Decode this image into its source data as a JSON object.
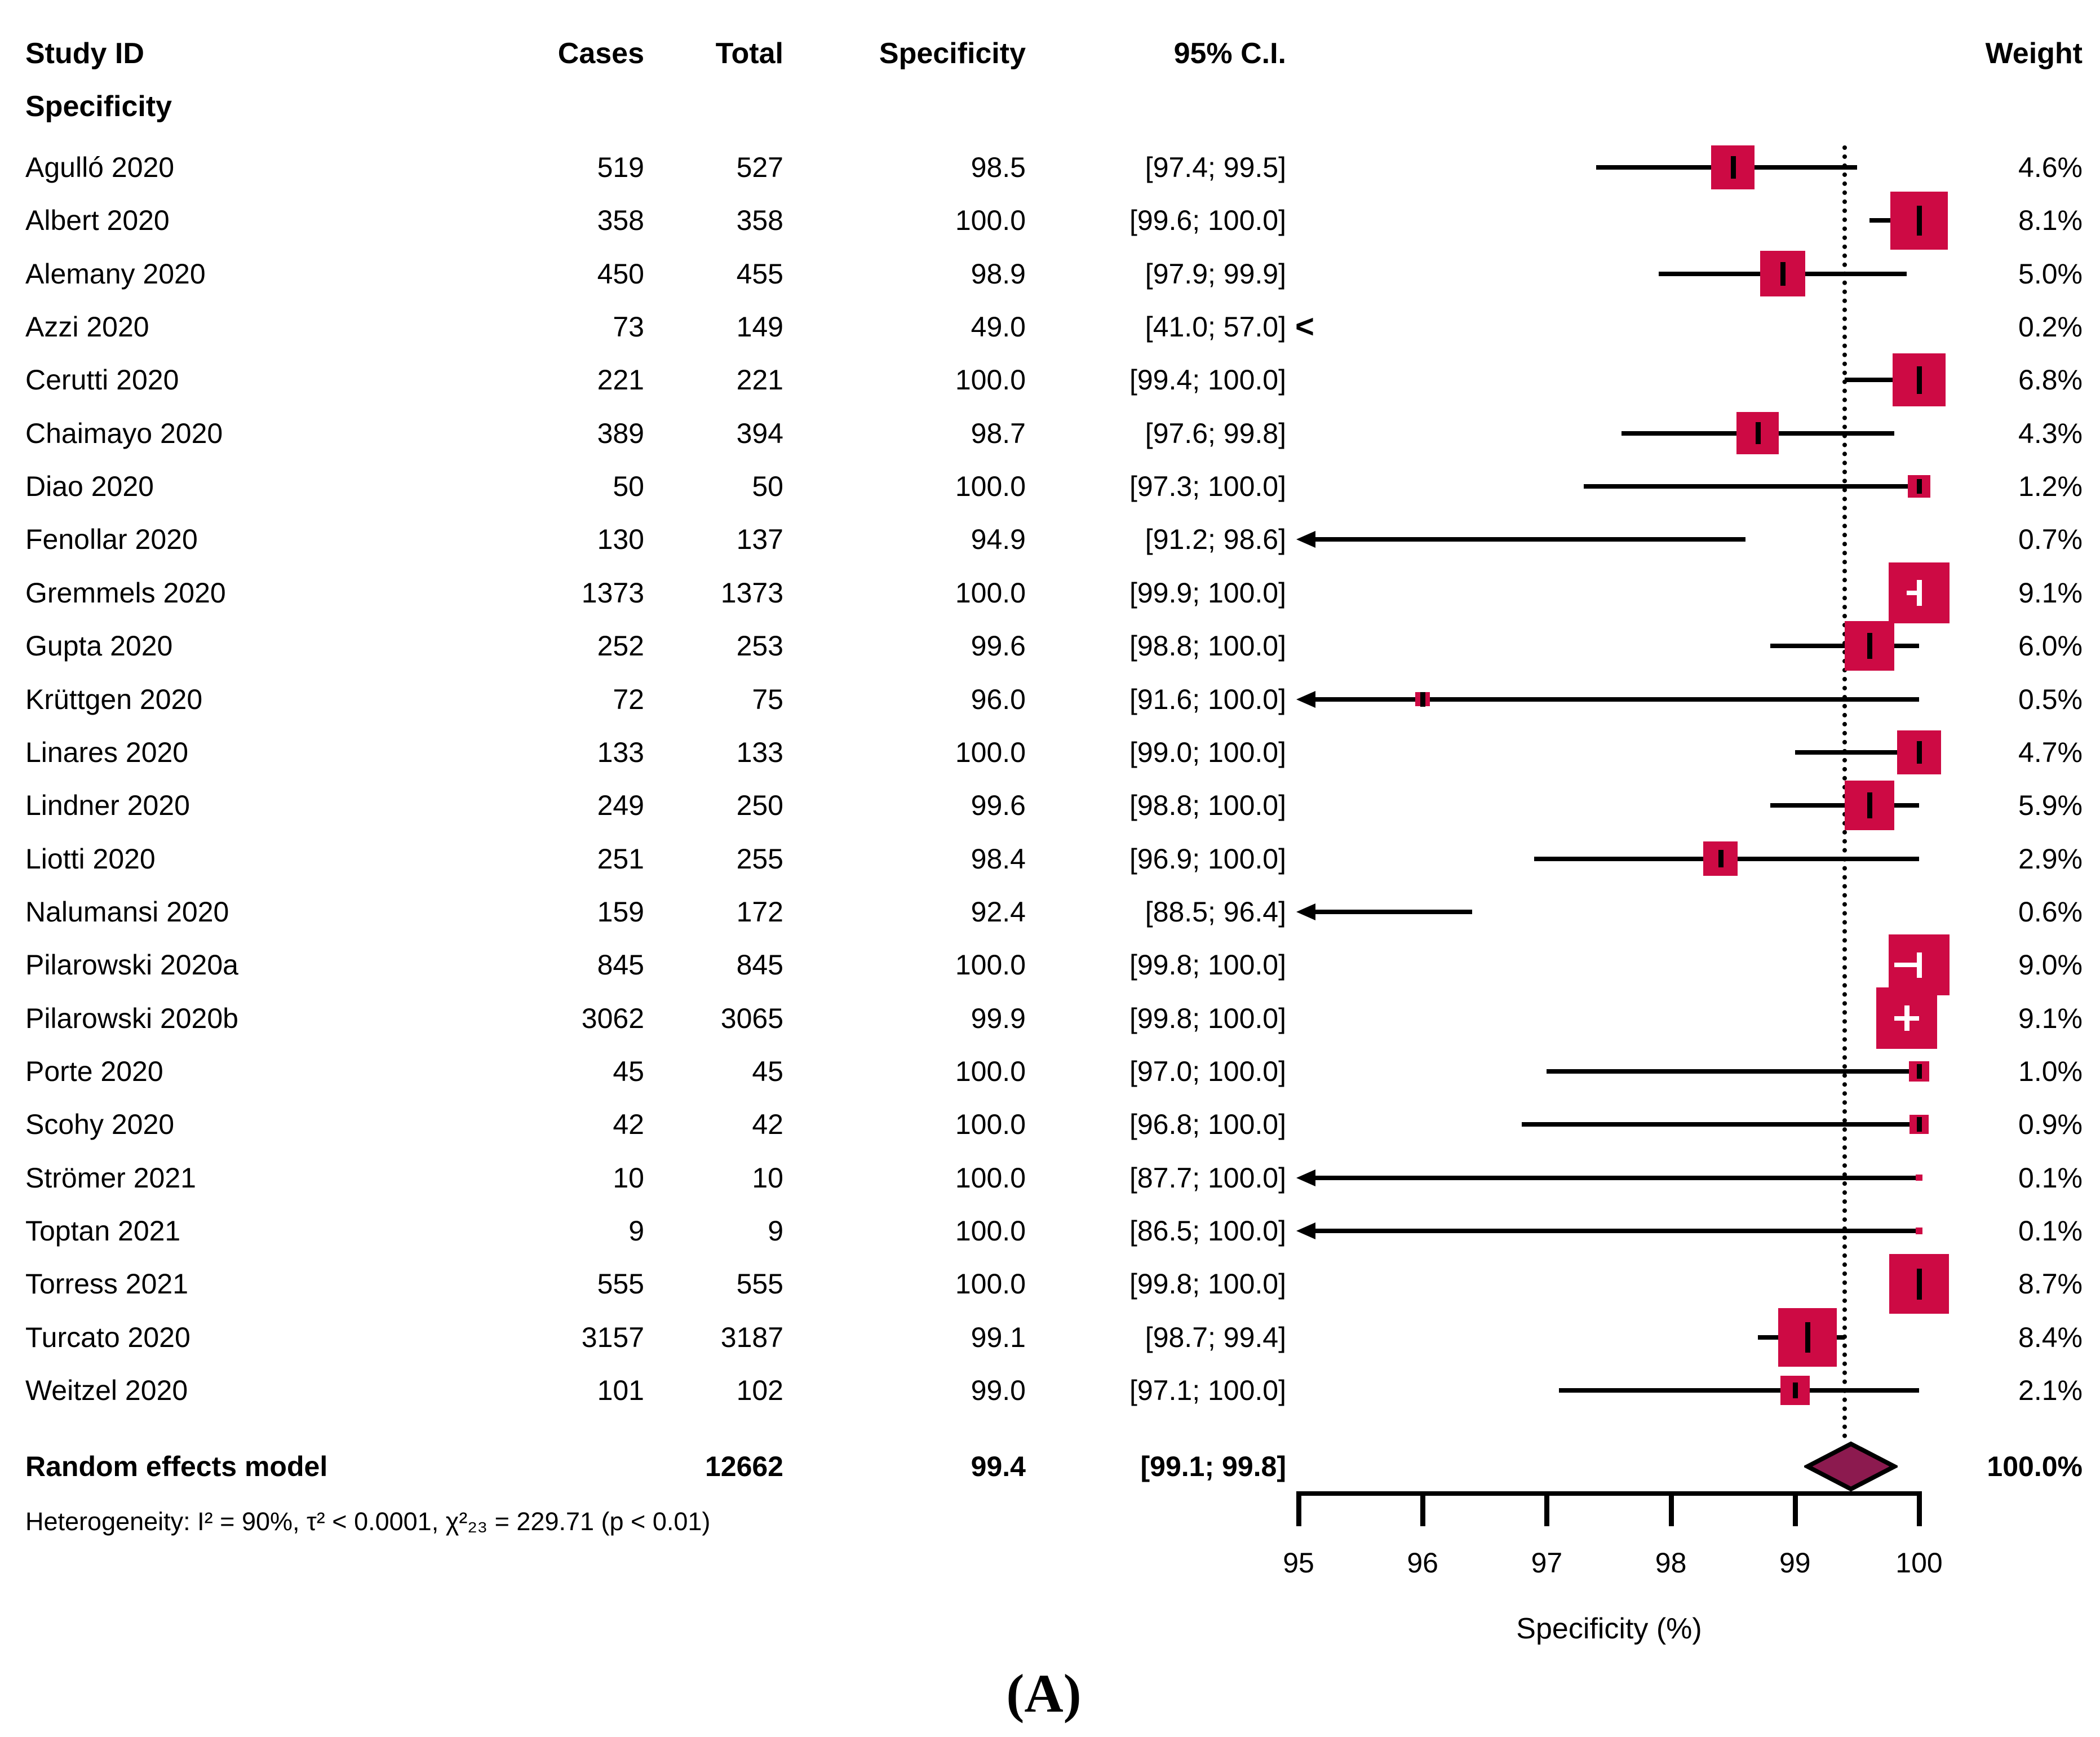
{
  "chart_data": {
    "type": "forest",
    "columns": {
      "study": "Study ID",
      "study_sub": "Specificity",
      "cases": "Cases",
      "total": "Total",
      "specificity": "Specificity",
      "ci": "95% C.I.",
      "weight": "Weight"
    },
    "xlabel": "Specificity (%)",
    "x_ticks": [
      "95",
      "96",
      "97",
      "98",
      "99",
      "100"
    ],
    "xlim": [
      95,
      100
    ],
    "pooled_ref_line": 99.4,
    "colors": {
      "square": "#CD0A44",
      "diamond_fill": "#8C1A4F",
      "diamond_border": "#000000"
    },
    "studies": [
      {
        "id": "Agulló 2020",
        "cases": "519",
        "total": "527",
        "specificity": "98.5",
        "ci": "[97.4; 99.5]",
        "spec_val": 98.5,
        "ci_lo": 97.4,
        "ci_hi": 99.5,
        "weight": "4.6%",
        "weight_val": 4.6
      },
      {
        "id": "Albert 2020",
        "cases": "358",
        "total": "358",
        "specificity": "100.0",
        "ci": "[99.6; 100.0]",
        "spec_val": 100.0,
        "ci_lo": 99.6,
        "ci_hi": 100.0,
        "weight": "8.1%",
        "weight_val": 8.1
      },
      {
        "id": "Alemany 2020",
        "cases": "450",
        "total": "455",
        "specificity": "98.9",
        "ci": "[97.9; 99.9]",
        "spec_val": 98.9,
        "ci_lo": 97.9,
        "ci_hi": 99.9,
        "weight": "5.0%",
        "weight_val": 5.0
      },
      {
        "id": "Azzi 2020",
        "cases": "73",
        "total": "149",
        "specificity": "49.0",
        "ci": "[41.0; 57.0]",
        "spec_val": 49.0,
        "ci_lo": 41.0,
        "ci_hi": 57.0,
        "weight": "0.2%",
        "weight_val": 0.2
      },
      {
        "id": "Cerutti 2020",
        "cases": "221",
        "total": "221",
        "specificity": "100.0",
        "ci": "[99.4; 100.0]",
        "spec_val": 100.0,
        "ci_lo": 99.4,
        "ci_hi": 100.0,
        "weight": "6.8%",
        "weight_val": 6.8
      },
      {
        "id": "Chaimayo 2020",
        "cases": "389",
        "total": "394",
        "specificity": "98.7",
        "ci": "[97.6; 99.8]",
        "spec_val": 98.7,
        "ci_lo": 97.6,
        "ci_hi": 99.8,
        "weight": "4.3%",
        "weight_val": 4.3
      },
      {
        "id": "Diao 2020",
        "cases": "50",
        "total": "50",
        "specificity": "100.0",
        "ci": "[97.3; 100.0]",
        "spec_val": 100.0,
        "ci_lo": 97.3,
        "ci_hi": 100.0,
        "weight": "1.2%",
        "weight_val": 1.2
      },
      {
        "id": "Fenollar 2020",
        "cases": "130",
        "total": "137",
        "specificity": "94.9",
        "ci": "[91.2; 98.6]",
        "spec_val": 94.9,
        "ci_lo": 91.2,
        "ci_hi": 98.6,
        "weight": "0.7%",
        "weight_val": 0.7
      },
      {
        "id": "Gremmels 2020",
        "cases": "1373",
        "total": "1373",
        "specificity": "100.0",
        "ci": "[99.9; 100.0]",
        "spec_val": 100.0,
        "ci_lo": 99.9,
        "ci_hi": 100.0,
        "weight": "9.1%",
        "weight_val": 9.1,
        "inner_white": true
      },
      {
        "id": "Gupta 2020",
        "cases": "252",
        "total": "253",
        "specificity": "99.6",
        "ci": "[98.8; 100.0]",
        "spec_val": 99.6,
        "ci_lo": 98.8,
        "ci_hi": 100.0,
        "weight": "6.0%",
        "weight_val": 6.0
      },
      {
        "id": "Krüttgen 2020",
        "cases": "72",
        "total": "75",
        "specificity": "96.0",
        "ci": "[91.6; 100.0]",
        "spec_val": 96.0,
        "ci_lo": 91.6,
        "ci_hi": 100.0,
        "weight": "0.5%",
        "weight_val": 0.5
      },
      {
        "id": "Linares 2020",
        "cases": "133",
        "total": "133",
        "specificity": "100.0",
        "ci": "[99.0; 100.0]",
        "spec_val": 100.0,
        "ci_lo": 99.0,
        "ci_hi": 100.0,
        "weight": "4.7%",
        "weight_val": 4.7
      },
      {
        "id": "Lindner 2020",
        "cases": "249",
        "total": "250",
        "specificity": "99.6",
        "ci": "[98.8; 100.0]",
        "spec_val": 99.6,
        "ci_lo": 98.8,
        "ci_hi": 100.0,
        "weight": "5.9%",
        "weight_val": 5.9
      },
      {
        "id": "Liotti 2020",
        "cases": "251",
        "total": "255",
        "specificity": "98.4",
        "ci": "[96.9; 100.0]",
        "spec_val": 98.4,
        "ci_lo": 96.9,
        "ci_hi": 100.0,
        "weight": "2.9%",
        "weight_val": 2.9
      },
      {
        "id": "Nalumansi 2020",
        "cases": "159",
        "total": "172",
        "specificity": "92.4",
        "ci": "[88.5; 96.4]",
        "spec_val": 92.4,
        "ci_lo": 88.5,
        "ci_hi": 96.4,
        "weight": "0.6%",
        "weight_val": 0.6
      },
      {
        "id": "Pilarowski 2020a",
        "cases": "845",
        "total": "845",
        "specificity": "100.0",
        "ci": "[99.8; 100.0]",
        "spec_val": 100.0,
        "ci_lo": 99.8,
        "ci_hi": 100.0,
        "weight": "9.0%",
        "weight_val": 9.0,
        "inner_white": true
      },
      {
        "id": "Pilarowski 2020b",
        "cases": "3062",
        "total": "3065",
        "specificity": "99.9",
        "ci": "[99.8; 100.0]",
        "spec_val": 99.9,
        "ci_lo": 99.8,
        "ci_hi": 100.0,
        "weight": "9.1%",
        "weight_val": 9.1,
        "inner_white": true
      },
      {
        "id": "Porte 2020",
        "cases": "45",
        "total": "45",
        "specificity": "100.0",
        "ci": "[97.0; 100.0]",
        "spec_val": 100.0,
        "ci_lo": 97.0,
        "ci_hi": 100.0,
        "weight": "1.0%",
        "weight_val": 1.0
      },
      {
        "id": "Scohy 2020",
        "cases": "42",
        "total": "42",
        "specificity": "100.0",
        "ci": "[96.8; 100.0]",
        "spec_val": 100.0,
        "ci_lo": 96.8,
        "ci_hi": 100.0,
        "weight": "0.9%",
        "weight_val": 0.9
      },
      {
        "id": "Strömer 2021",
        "cases": "10",
        "total": "10",
        "specificity": "100.0",
        "ci": "[87.7; 100.0]",
        "spec_val": 100.0,
        "ci_lo": 87.7,
        "ci_hi": 100.0,
        "weight": "0.1%",
        "weight_val": 0.1
      },
      {
        "id": "Toptan 2021",
        "cases": "9",
        "total": "9",
        "specificity": "100.0",
        "ci": "[86.5; 100.0]",
        "spec_val": 100.0,
        "ci_lo": 86.5,
        "ci_hi": 100.0,
        "weight": "0.1%",
        "weight_val": 0.1
      },
      {
        "id": "Torress 2021",
        "cases": "555",
        "total": "555",
        "specificity": "100.0",
        "ci": "[99.8; 100.0]",
        "spec_val": 100.0,
        "ci_lo": 99.8,
        "ci_hi": 100.0,
        "weight": "8.7%",
        "weight_val": 8.7
      },
      {
        "id": "Turcato 2020",
        "cases": "3157",
        "total": "3187",
        "specificity": "99.1",
        "ci": "[98.7; 99.4]",
        "spec_val": 99.1,
        "ci_lo": 98.7,
        "ci_hi": 99.4,
        "weight": "8.4%",
        "weight_val": 8.4
      },
      {
        "id": "Weitzel 2020",
        "cases": "101",
        "total": "102",
        "specificity": "99.0",
        "ci": "[97.1; 100.0]",
        "spec_val": 99.0,
        "ci_lo": 97.1,
        "ci_hi": 100.0,
        "weight": "2.1%",
        "weight_val": 2.1
      }
    ],
    "pooled": {
      "label": "Random effects model",
      "total": "12662",
      "specificity": "99.4",
      "ci": "[99.1; 99.8]",
      "spec_val": 99.45,
      "ci_lo": 99.1,
      "ci_hi": 99.8,
      "weight": "100.0%"
    },
    "heterogeneity": "Heterogeneity: I² = 90%, τ² < 0.0001, χ²₂₃ = 229.71 (p < 0.01)",
    "panel_label": "(A)"
  }
}
